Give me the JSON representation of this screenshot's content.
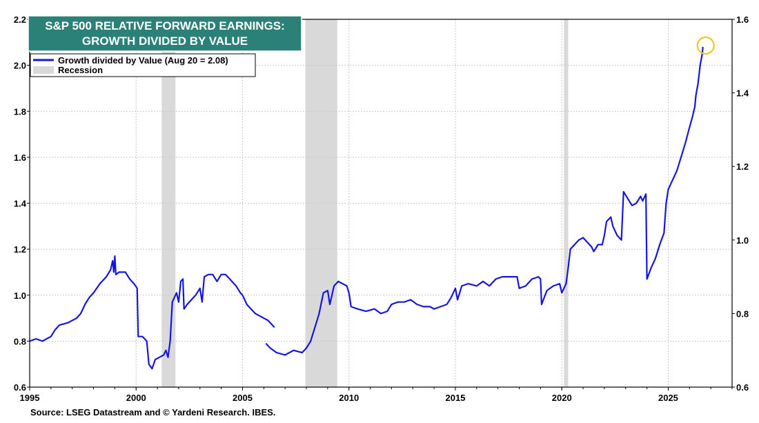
{
  "chart_data": {
    "type": "line",
    "title": [
      "S&P 500 RELATIVE FORWARD EARNINGS:",
      "GROWTH DIVIDED BY VALUE"
    ],
    "xlabel": "",
    "ylabel": "",
    "xlim": [
      1995,
      2028
    ],
    "ylim": [
      0.6,
      2.2
    ],
    "ylim_right": [
      0.6,
      1.6
    ],
    "x_ticks": [
      "1995",
      "2000",
      "2005",
      "2010",
      "2015",
      "2020",
      "2025"
    ],
    "y_ticks_left": [
      "0.6",
      "0.8",
      "1.0",
      "1.2",
      "1.4",
      "1.6",
      "1.8",
      "2.0",
      "2.2"
    ],
    "y_ticks_right": [
      "0.6",
      "0.8",
      "1.0",
      "1.2",
      "1.4",
      "1.6"
    ],
    "grid": true,
    "legend_position": "top-left",
    "legend": [
      {
        "label": "Growth divided by Value (Aug 20 = 2.08)",
        "kind": "line",
        "color": "#1515e0"
      },
      {
        "label": "Recession",
        "kind": "band",
        "color": "#d9d9d9"
      }
    ],
    "recessions": [
      [
        2001.2,
        2001.85
      ],
      [
        2007.95,
        2009.45
      ],
      [
        2020.1,
        2020.3
      ]
    ],
    "highlight": {
      "x": 2026.63,
      "y": 2.08,
      "color": "#f2c80f"
    },
    "series": [
      {
        "name": "Growth divided by Value (Aug 20 = 2.08)",
        "color": "#1515e0",
        "segments": [
          [
            [
              1995.0,
              0.8
            ],
            [
              1995.3,
              0.81
            ],
            [
              1995.6,
              0.8
            ],
            [
              1996.0,
              0.82
            ],
            [
              1996.2,
              0.85
            ],
            [
              1996.4,
              0.87
            ],
            [
              1996.8,
              0.88
            ],
            [
              1997.2,
              0.9
            ],
            [
              1997.4,
              0.92
            ],
            [
              1997.6,
              0.96
            ],
            [
              1997.8,
              0.99
            ],
            [
              1998.0,
              1.01
            ],
            [
              1998.3,
              1.05
            ],
            [
              1998.6,
              1.08
            ],
            [
              1998.8,
              1.11
            ],
            [
              1998.9,
              1.15
            ],
            [
              1998.95,
              1.1
            ],
            [
              1999.0,
              1.17
            ],
            [
              1999.05,
              1.09
            ],
            [
              1999.2,
              1.1
            ],
            [
              1999.5,
              1.1
            ],
            [
              1999.7,
              1.07
            ],
            [
              1999.9,
              1.05
            ],
            [
              2000.05,
              1.03
            ],
            [
              2000.1,
              0.82
            ],
            [
              2000.3,
              0.82
            ],
            [
              2000.5,
              0.8
            ],
            [
              2000.6,
              0.7
            ],
            [
              2000.75,
              0.68
            ],
            [
              2000.9,
              0.72
            ],
            [
              2001.1,
              0.73
            ],
            [
              2001.3,
              0.74
            ],
            [
              2001.4,
              0.76
            ],
            [
              2001.5,
              0.73
            ],
            [
              2001.6,
              0.8
            ],
            [
              2001.7,
              0.97
            ],
            [
              2001.9,
              1.01
            ],
            [
              2002.0,
              0.97
            ],
            [
              2002.1,
              1.06
            ],
            [
              2002.2,
              1.07
            ],
            [
              2002.25,
              0.94
            ],
            [
              2002.4,
              0.96
            ],
            [
              2002.6,
              0.98
            ],
            [
              2002.8,
              1.0
            ],
            [
              2003.0,
              1.03
            ],
            [
              2003.1,
              0.97
            ],
            [
              2003.2,
              1.08
            ],
            [
              2003.4,
              1.09
            ],
            [
              2003.6,
              1.09
            ],
            [
              2003.8,
              1.06
            ],
            [
              2004.0,
              1.09
            ],
            [
              2004.2,
              1.09
            ],
            [
              2004.4,
              1.07
            ],
            [
              2004.7,
              1.04
            ],
            [
              2004.9,
              1.01
            ],
            [
              2005.0,
              1.0
            ],
            [
              2005.2,
              0.96
            ],
            [
              2005.4,
              0.94
            ],
            [
              2005.6,
              0.92
            ],
            [
              2005.8,
              0.91
            ],
            [
              2006.0,
              0.9
            ],
            [
              2006.2,
              0.89
            ],
            [
              2006.4,
              0.87
            ],
            [
              2006.5,
              0.86
            ]
          ],
          [
            [
              2006.1,
              0.79
            ],
            [
              2006.3,
              0.77
            ],
            [
              2006.6,
              0.75
            ],
            [
              2007.0,
              0.74
            ],
            [
              2007.4,
              0.76
            ],
            [
              2007.8,
              0.75
            ],
            [
              2008.0,
              0.77
            ],
            [
              2008.2,
              0.8
            ],
            [
              2008.4,
              0.86
            ],
            [
              2008.6,
              0.92
            ],
            [
              2008.8,
              1.01
            ],
            [
              2009.0,
              1.02
            ],
            [
              2009.1,
              0.96
            ],
            [
              2009.3,
              1.04
            ],
            [
              2009.5,
              1.06
            ],
            [
              2009.7,
              1.05
            ],
            [
              2009.9,
              1.04
            ],
            [
              2010.0,
              1.01
            ],
            [
              2010.1,
              0.95
            ],
            [
              2010.4,
              0.94
            ],
            [
              2010.8,
              0.93
            ],
            [
              2011.2,
              0.94
            ],
            [
              2011.5,
              0.92
            ],
            [
              2011.8,
              0.93
            ],
            [
              2012.0,
              0.96
            ],
            [
              2012.3,
              0.97
            ],
            [
              2012.6,
              0.97
            ],
            [
              2012.9,
              0.98
            ],
            [
              2013.2,
              0.96
            ],
            [
              2013.5,
              0.95
            ],
            [
              2013.8,
              0.95
            ],
            [
              2014.0,
              0.94
            ],
            [
              2014.3,
              0.95
            ],
            [
              2014.6,
              0.96
            ],
            [
              2014.8,
              0.99
            ],
            [
              2015.0,
              1.03
            ],
            [
              2015.1,
              0.98
            ],
            [
              2015.3,
              1.04
            ],
            [
              2015.6,
              1.05
            ],
            [
              2016.0,
              1.04
            ],
            [
              2016.3,
              1.06
            ],
            [
              2016.6,
              1.04
            ],
            [
              2016.9,
              1.07
            ],
            [
              2017.2,
              1.08
            ],
            [
              2017.6,
              1.08
            ],
            [
              2017.9,
              1.08
            ],
            [
              2018.0,
              1.03
            ],
            [
              2018.3,
              1.04
            ],
            [
              2018.6,
              1.07
            ],
            [
              2018.9,
              1.08
            ],
            [
              2019.0,
              1.07
            ],
            [
              2019.05,
              0.96
            ],
            [
              2019.3,
              1.02
            ],
            [
              2019.6,
              1.04
            ],
            [
              2019.9,
              1.05
            ],
            [
              2020.0,
              1.01
            ],
            [
              2020.2,
              1.05
            ],
            [
              2020.3,
              1.12
            ],
            [
              2020.4,
              1.2
            ],
            [
              2020.6,
              1.22
            ],
            [
              2020.8,
              1.24
            ],
            [
              2021.0,
              1.25
            ],
            [
              2021.2,
              1.23
            ],
            [
              2021.4,
              1.21
            ],
            [
              2021.5,
              1.19
            ],
            [
              2021.7,
              1.22
            ],
            [
              2021.9,
              1.22
            ],
            [
              2022.0,
              1.26
            ],
            [
              2022.1,
              1.32
            ],
            [
              2022.3,
              1.34
            ],
            [
              2022.4,
              1.3
            ],
            [
              2022.6,
              1.26
            ],
            [
              2022.8,
              1.24
            ],
            [
              2022.9,
              1.45
            ],
            [
              2023.1,
              1.42
            ],
            [
              2023.3,
              1.39
            ],
            [
              2023.5,
              1.4
            ],
            [
              2023.7,
              1.43
            ],
            [
              2023.8,
              1.41
            ],
            [
              2023.95,
              1.44
            ],
            [
              2024.0,
              1.07
            ],
            [
              2024.2,
              1.12
            ],
            [
              2024.4,
              1.16
            ],
            [
              2024.6,
              1.22
            ],
            [
              2024.8,
              1.27
            ],
            [
              2024.9,
              1.4
            ],
            [
              2025.0,
              1.46
            ],
            [
              2025.2,
              1.5
            ],
            [
              2025.4,
              1.54
            ],
            [
              2025.6,
              1.6
            ],
            [
              2025.8,
              1.66
            ],
            [
              2026.0,
              1.73
            ],
            [
              2026.15,
              1.78
            ],
            [
              2026.25,
              1.82
            ],
            [
              2026.3,
              1.87
            ],
            [
              2026.4,
              1.92
            ],
            [
              2026.5,
              2.0
            ],
            [
              2026.6,
              2.05
            ],
            [
              2026.63,
              2.08
            ]
          ]
        ]
      }
    ]
  },
  "source": "Source: LSEG Datastream and © Yardeni Research. IBES."
}
